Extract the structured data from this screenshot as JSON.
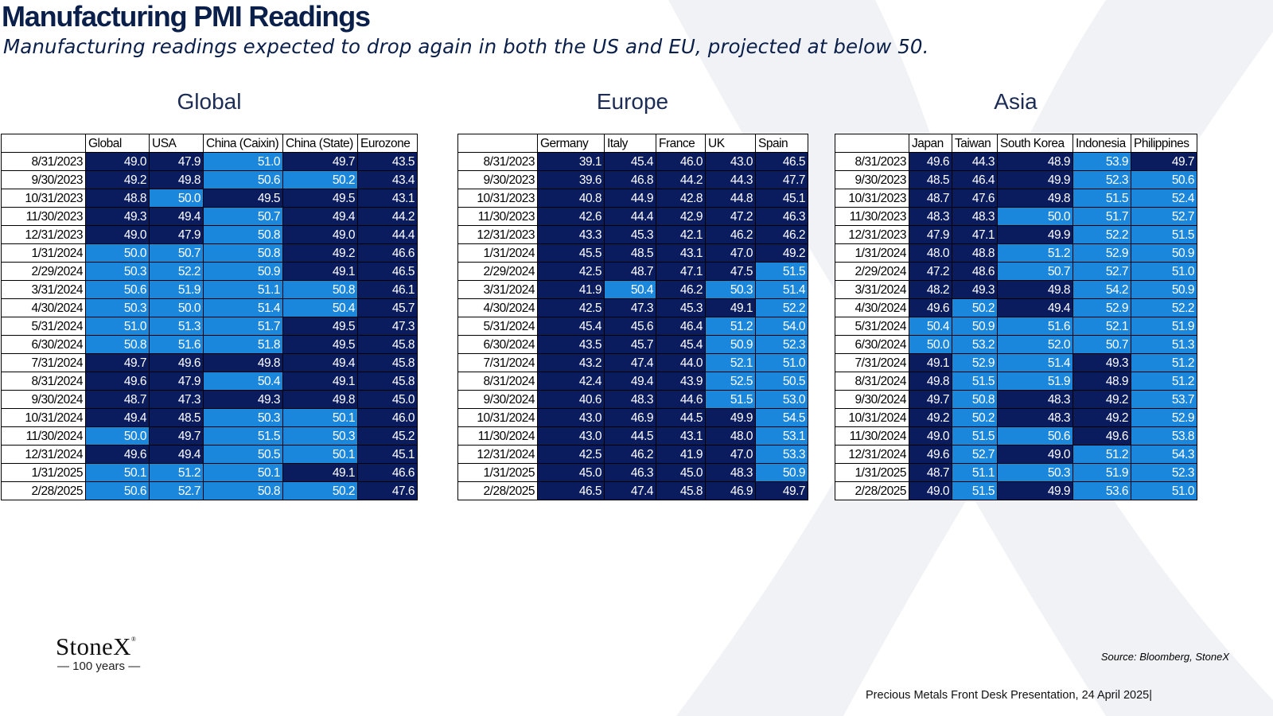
{
  "header": {
    "title": "Manufacturing PMI Readings",
    "subtitle": "Manufacturing readings expected to drop again in both the US and EU, projected at below 50."
  },
  "chart_data": [
    {
      "type": "table",
      "title": "Global",
      "columns": [
        "Global",
        "USA",
        "China (Caixin)",
        "China (State)",
        "Eurozone"
      ],
      "rows": [
        {
          "date": "8/31/2023",
          "values": [
            "49.0",
            "47.9",
            "51.0",
            "49.7",
            "43.5"
          ]
        },
        {
          "date": "9/30/2023",
          "values": [
            "49.2",
            "49.8",
            "50.6",
            "50.2",
            "43.4"
          ]
        },
        {
          "date": "10/31/2023",
          "values": [
            "48.8",
            "50.0",
            "49.5",
            "49.5",
            "43.1"
          ]
        },
        {
          "date": "11/30/2023",
          "values": [
            "49.3",
            "49.4",
            "50.7",
            "49.4",
            "44.2"
          ]
        },
        {
          "date": "12/31/2023",
          "values": [
            "49.0",
            "47.9",
            "50.8",
            "49.0",
            "44.4"
          ]
        },
        {
          "date": "1/31/2024",
          "values": [
            "50.0",
            "50.7",
            "50.8",
            "49.2",
            "46.6"
          ]
        },
        {
          "date": "2/29/2024",
          "values": [
            "50.3",
            "52.2",
            "50.9",
            "49.1",
            "46.5"
          ]
        },
        {
          "date": "3/31/2024",
          "values": [
            "50.6",
            "51.9",
            "51.1",
            "50.8",
            "46.1"
          ]
        },
        {
          "date": "4/30/2024",
          "values": [
            "50.3",
            "50.0",
            "51.4",
            "50.4",
            "45.7"
          ]
        },
        {
          "date": "5/31/2024",
          "values": [
            "51.0",
            "51.3",
            "51.7",
            "49.5",
            "47.3"
          ]
        },
        {
          "date": "6/30/2024",
          "values": [
            "50.8",
            "51.6",
            "51.8",
            "49.5",
            "45.8"
          ]
        },
        {
          "date": "7/31/2024",
          "values": [
            "49.7",
            "49.6",
            "49.8",
            "49.4",
            "45.8"
          ]
        },
        {
          "date": "8/31/2024",
          "values": [
            "49.6",
            "47.9",
            "50.4",
            "49.1",
            "45.8"
          ]
        },
        {
          "date": "9/30/2024",
          "values": [
            "48.7",
            "47.3",
            "49.3",
            "49.8",
            "45.0"
          ]
        },
        {
          "date": "10/31/2024",
          "values": [
            "49.4",
            "48.5",
            "50.3",
            "50.1",
            "46.0"
          ]
        },
        {
          "date": "11/30/2024",
          "values": [
            "50.0",
            "49.7",
            "51.5",
            "50.3",
            "45.2"
          ]
        },
        {
          "date": "12/31/2024",
          "values": [
            "49.6",
            "49.4",
            "50.5",
            "50.1",
            "45.1"
          ]
        },
        {
          "date": "1/31/2025",
          "values": [
            "50.1",
            "51.2",
            "50.1",
            "49.1",
            "46.6"
          ]
        },
        {
          "date": "2/28/2025",
          "values": [
            "50.6",
            "52.7",
            "50.8",
            "50.2",
            "47.6"
          ]
        }
      ]
    },
    {
      "type": "table",
      "title": "Europe",
      "columns": [
        "Germany",
        "Italy",
        "France",
        "UK",
        "Spain"
      ],
      "rows": [
        {
          "date": "8/31/2023",
          "values": [
            "39.1",
            "45.4",
            "46.0",
            "43.0",
            "46.5"
          ]
        },
        {
          "date": "9/30/2023",
          "values": [
            "39.6",
            "46.8",
            "44.2",
            "44.3",
            "47.7"
          ]
        },
        {
          "date": "10/31/2023",
          "values": [
            "40.8",
            "44.9",
            "42.8",
            "44.8",
            "45.1"
          ]
        },
        {
          "date": "11/30/2023",
          "values": [
            "42.6",
            "44.4",
            "42.9",
            "47.2",
            "46.3"
          ]
        },
        {
          "date": "12/31/2023",
          "values": [
            "43.3",
            "45.3",
            "42.1",
            "46.2",
            "46.2"
          ]
        },
        {
          "date": "1/31/2024",
          "values": [
            "45.5",
            "48.5",
            "43.1",
            "47.0",
            "49.2"
          ]
        },
        {
          "date": "2/29/2024",
          "values": [
            "42.5",
            "48.7",
            "47.1",
            "47.5",
            "51.5"
          ]
        },
        {
          "date": "3/31/2024",
          "values": [
            "41.9",
            "50.4",
            "46.2",
            "50.3",
            "51.4"
          ]
        },
        {
          "date": "4/30/2024",
          "values": [
            "42.5",
            "47.3",
            "45.3",
            "49.1",
            "52.2"
          ]
        },
        {
          "date": "5/31/2024",
          "values": [
            "45.4",
            "45.6",
            "46.4",
            "51.2",
            "54.0"
          ]
        },
        {
          "date": "6/30/2024",
          "values": [
            "43.5",
            "45.7",
            "45.4",
            "50.9",
            "52.3"
          ]
        },
        {
          "date": "7/31/2024",
          "values": [
            "43.2",
            "47.4",
            "44.0",
            "52.1",
            "51.0"
          ]
        },
        {
          "date": "8/31/2024",
          "values": [
            "42.4",
            "49.4",
            "43.9",
            "52.5",
            "50.5"
          ]
        },
        {
          "date": "9/30/2024",
          "values": [
            "40.6",
            "48.3",
            "44.6",
            "51.5",
            "53.0"
          ]
        },
        {
          "date": "10/31/2024",
          "values": [
            "43.0",
            "46.9",
            "44.5",
            "49.9",
            "54.5"
          ]
        },
        {
          "date": "11/30/2024",
          "values": [
            "43.0",
            "44.5",
            "43.1",
            "48.0",
            "53.1"
          ]
        },
        {
          "date": "12/31/2024",
          "values": [
            "42.5",
            "46.2",
            "41.9",
            "47.0",
            "53.3"
          ]
        },
        {
          "date": "1/31/2025",
          "values": [
            "45.0",
            "46.3",
            "45.0",
            "48.3",
            "50.9"
          ]
        },
        {
          "date": "2/28/2025",
          "values": [
            "46.5",
            "47.4",
            "45.8",
            "46.9",
            "49.7"
          ]
        }
      ]
    },
    {
      "type": "table",
      "title": "Asia",
      "columns": [
        "Japan",
        "Taiwan",
        "South Korea",
        "Indonesia",
        "Philippines"
      ],
      "rows": [
        {
          "date": "8/31/2023",
          "values": [
            "49.6",
            "44.3",
            "48.9",
            "53.9",
            "49.7"
          ]
        },
        {
          "date": "9/30/2023",
          "values": [
            "48.5",
            "46.4",
            "49.9",
            "52.3",
            "50.6"
          ]
        },
        {
          "date": "10/31/2023",
          "values": [
            "48.7",
            "47.6",
            "49.8",
            "51.5",
            "52.4"
          ]
        },
        {
          "date": "11/30/2023",
          "values": [
            "48.3",
            "48.3",
            "50.0",
            "51.7",
            "52.7"
          ]
        },
        {
          "date": "12/31/2023",
          "values": [
            "47.9",
            "47.1",
            "49.9",
            "52.2",
            "51.5"
          ]
        },
        {
          "date": "1/31/2024",
          "values": [
            "48.0",
            "48.8",
            "51.2",
            "52.9",
            "50.9"
          ]
        },
        {
          "date": "2/29/2024",
          "values": [
            "47.2",
            "48.6",
            "50.7",
            "52.7",
            "51.0"
          ]
        },
        {
          "date": "3/31/2024",
          "values": [
            "48.2",
            "49.3",
            "49.8",
            "54.2",
            "50.9"
          ]
        },
        {
          "date": "4/30/2024",
          "values": [
            "49.6",
            "50.2",
            "49.4",
            "52.9",
            "52.2"
          ]
        },
        {
          "date": "5/31/2024",
          "values": [
            "50.4",
            "50.9",
            "51.6",
            "52.1",
            "51.9"
          ]
        },
        {
          "date": "6/30/2024",
          "values": [
            "50.0",
            "53.2",
            "52.0",
            "50.7",
            "51.3"
          ]
        },
        {
          "date": "7/31/2024",
          "values": [
            "49.1",
            "52.9",
            "51.4",
            "49.3",
            "51.2"
          ]
        },
        {
          "date": "8/31/2024",
          "values": [
            "49.8",
            "51.5",
            "51.9",
            "48.9",
            "51.2"
          ]
        },
        {
          "date": "9/30/2024",
          "values": [
            "49.7",
            "50.8",
            "48.3",
            "49.2",
            "53.7"
          ]
        },
        {
          "date": "10/31/2024",
          "values": [
            "49.2",
            "50.2",
            "48.3",
            "49.2",
            "52.9"
          ]
        },
        {
          "date": "11/30/2024",
          "values": [
            "49.0",
            "51.5",
            "50.6",
            "49.6",
            "53.8"
          ]
        },
        {
          "date": "12/31/2024",
          "values": [
            "49.6",
            "52.7",
            "49.0",
            "51.2",
            "54.3"
          ]
        },
        {
          "date": "1/31/2025",
          "values": [
            "48.7",
            "51.1",
            "50.3",
            "51.9",
            "52.3"
          ]
        },
        {
          "date": "2/28/2025",
          "values": [
            "49.0",
            "51.5",
            "49.9",
            "53.6",
            "51.0"
          ]
        }
      ]
    }
  ],
  "colors": {
    "below_50": "#0a1b5e",
    "at_or_above_50": "#1b87dc",
    "title_navy": "#0b1f4b"
  },
  "logo": {
    "name": "StoneX",
    "mark": "®",
    "tagline": "— 100 years —"
  },
  "source": "Source: Bloomberg, StoneX",
  "footer": "Precious Metals Front Desk Presentation, 24 April 2025|"
}
